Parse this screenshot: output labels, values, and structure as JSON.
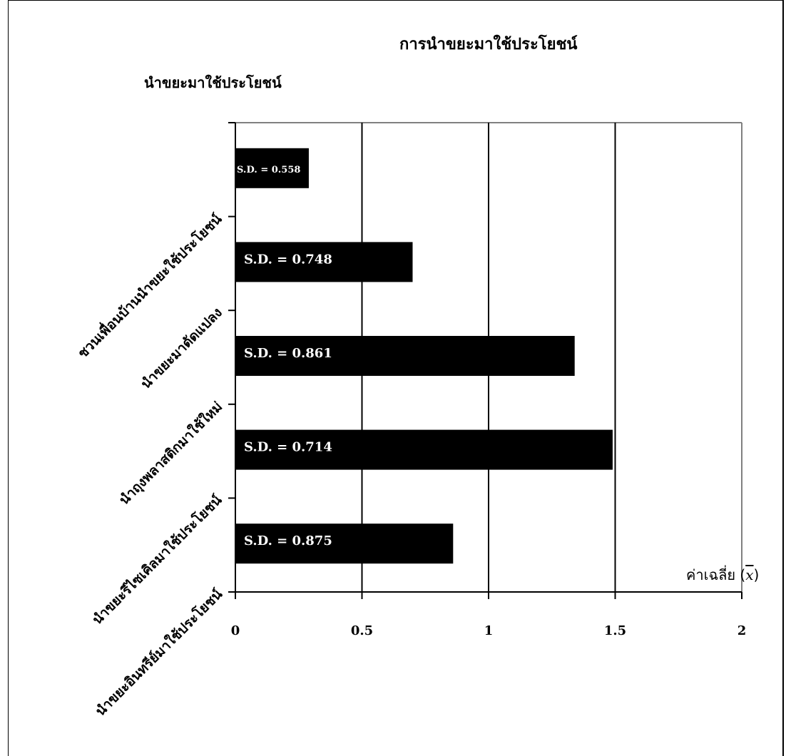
{
  "chart_data": {
    "type": "bar",
    "orientation": "horizontal",
    "title": "การนำขยะมาใช้ประโยชน์",
    "subtitle": "นำขยะมาใช้ประโยชน์",
    "xlabel": "ค่าเฉลี่ย",
    "xlabel_symbol": "x",
    "xlim": [
      0,
      2
    ],
    "xticks": [
      "0",
      "0.5",
      "1",
      "1.5",
      "2"
    ],
    "grid": true,
    "categories": [
      "ชวนเพื่อนบ้านนำขยะใช้ประโยชน์",
      "นำขยะมาดัดแปลง",
      "นำถุงพลาสติกมาใช้ใหม่",
      "นำขยะรีไซเคิลมาใช้ประโยชน์",
      "นำขยะอินทรีย์มาใช้ประโยชน์"
    ],
    "values": [
      0.29,
      0.7,
      1.34,
      1.49,
      0.86
    ],
    "bar_labels": [
      "S.D. = 0.558",
      "S.D. = 0.748",
      "S.D. = 0.861",
      "S.D. = 0.714",
      "S.D. = 0.875"
    ],
    "bar_color": "#000000",
    "label_color": "#ffffff"
  }
}
